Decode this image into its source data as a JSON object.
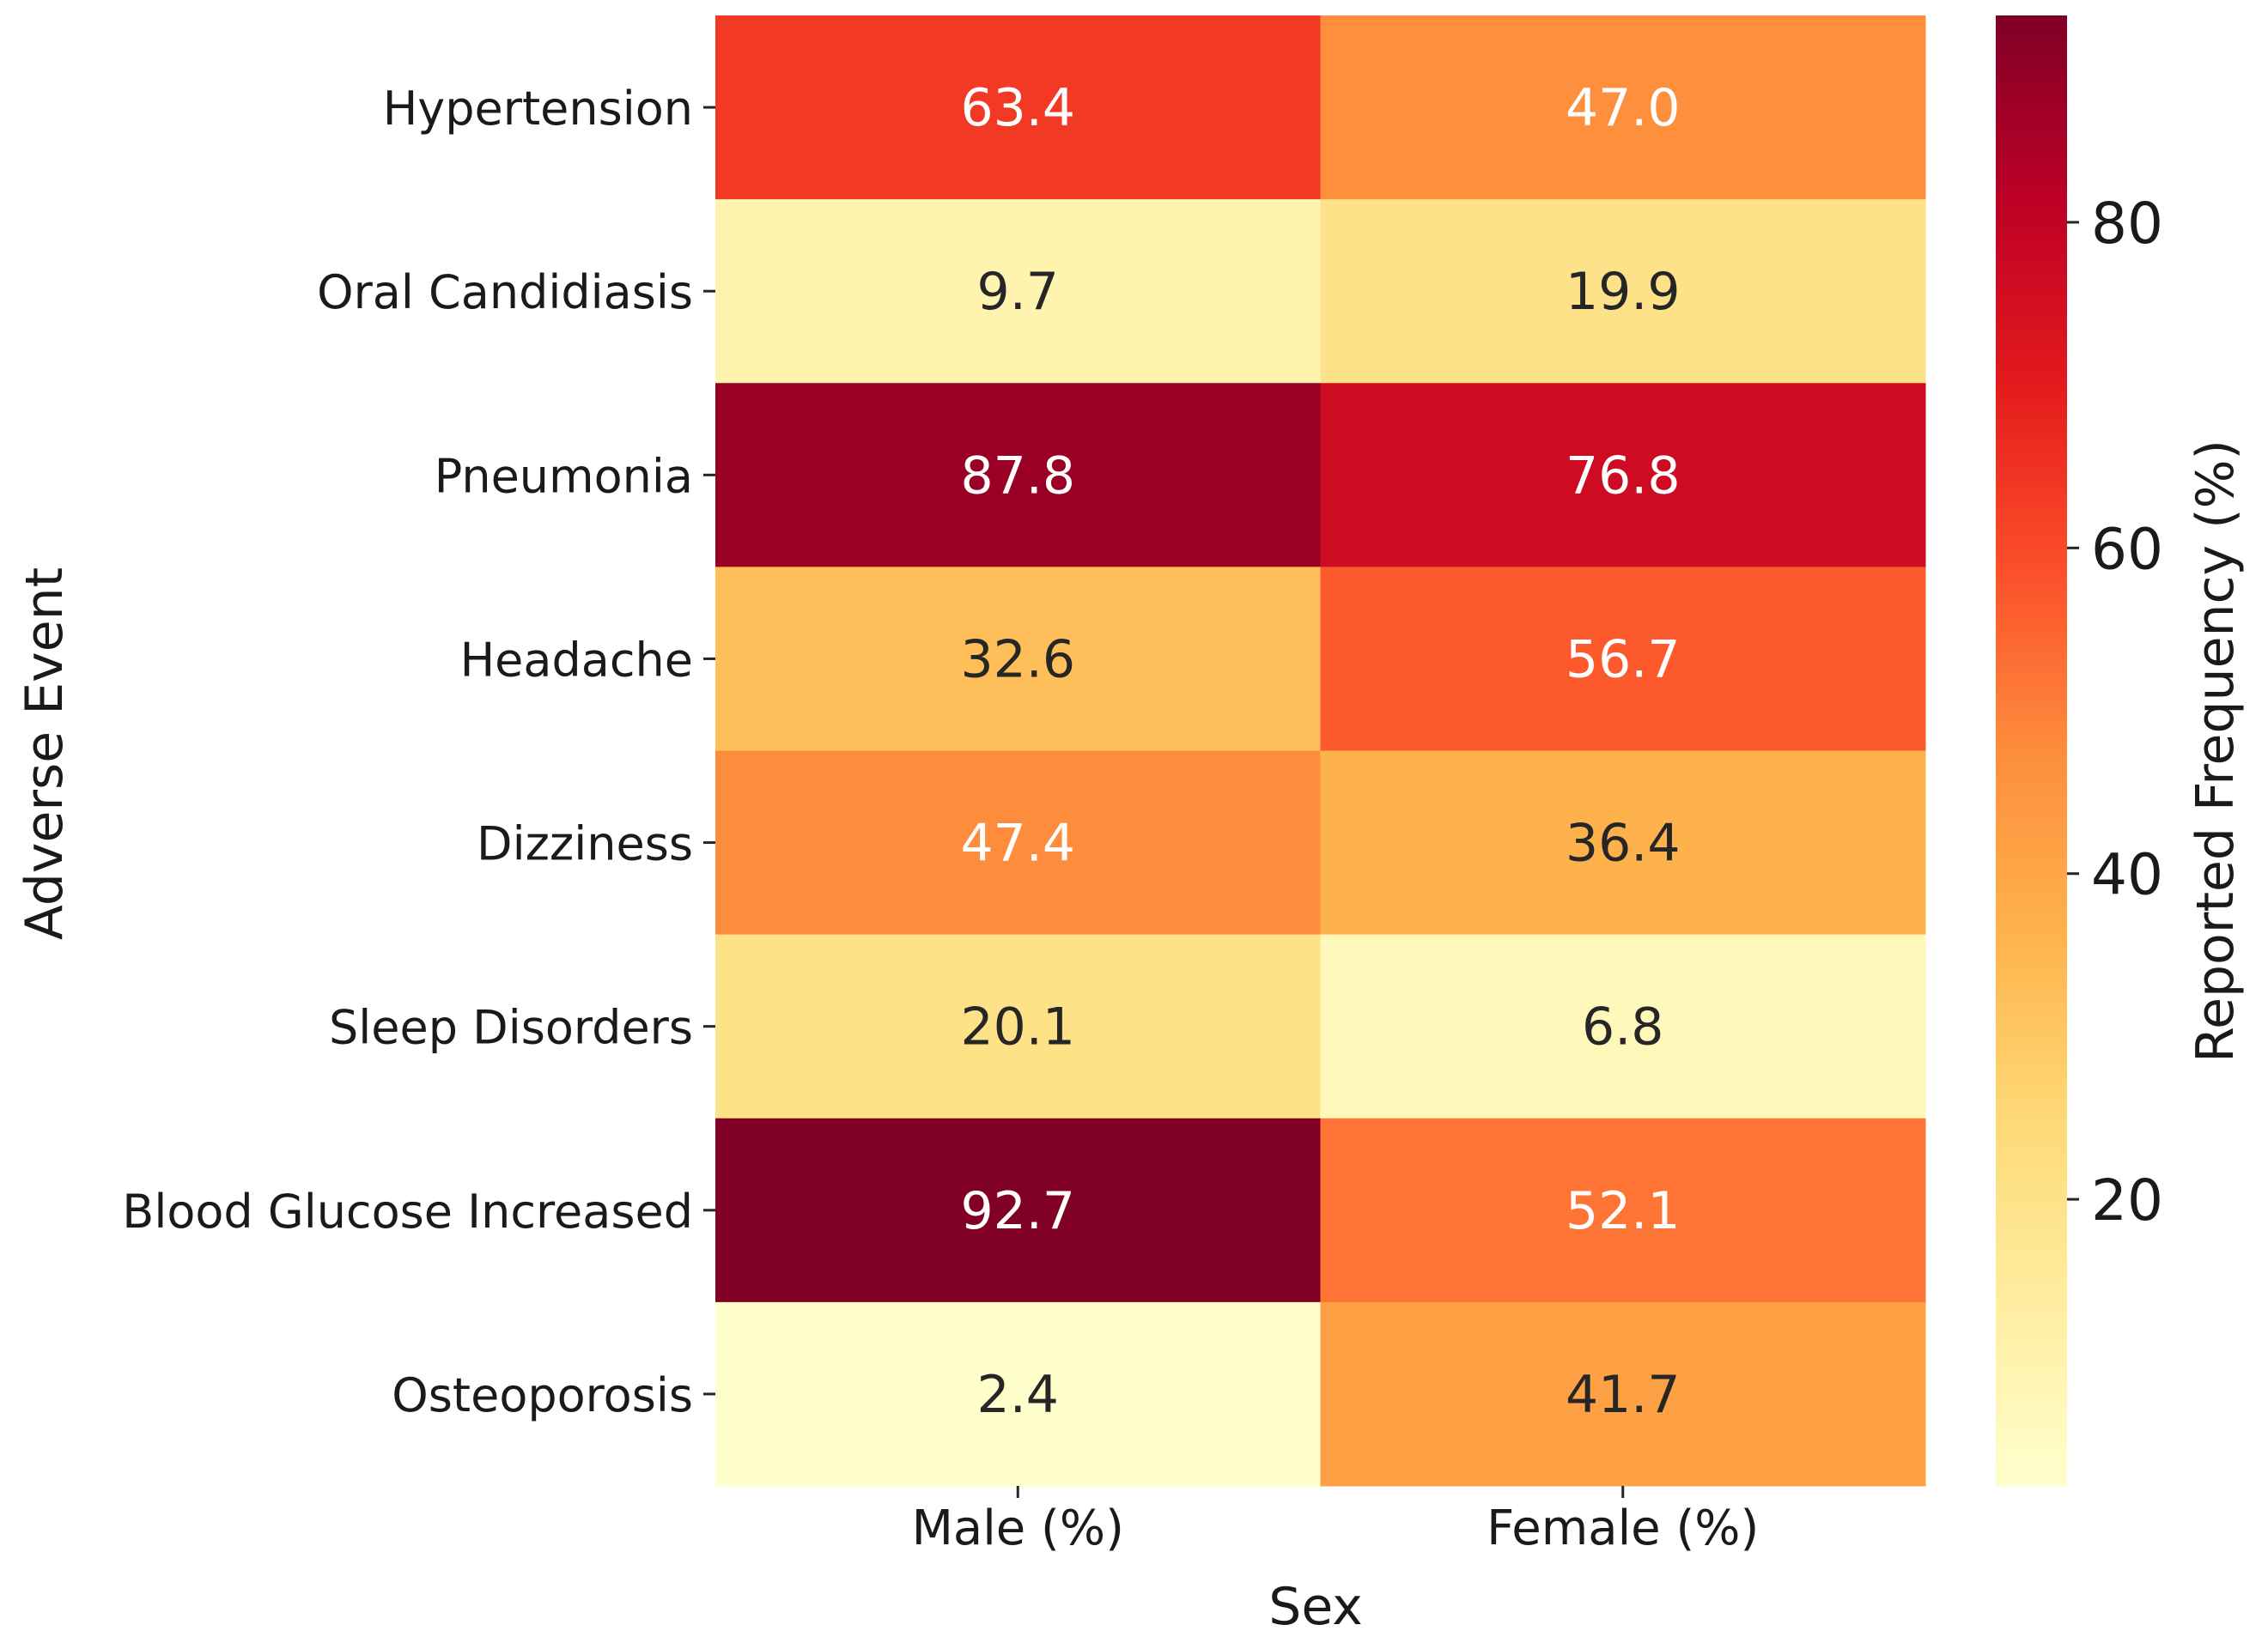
{
  "chart_data": {
    "type": "heatmap",
    "title": "",
    "xlabel": "Sex",
    "ylabel": "Adverse Event",
    "columns": [
      "Male (%)",
      "Female (%)"
    ],
    "rows": [
      "Hypertension",
      "Oral Candidiasis",
      "Pneumonia",
      "Headache",
      "Dizziness",
      "Sleep Disorders",
      "Blood Glucose Increased",
      "Osteoporosis"
    ],
    "values": [
      [
        63.4,
        47.0
      ],
      [
        9.7,
        19.9
      ],
      [
        87.8,
        76.8
      ],
      [
        32.6,
        56.7
      ],
      [
        47.4,
        36.4
      ],
      [
        20.1,
        6.8
      ],
      [
        92.7,
        52.1
      ],
      [
        2.4,
        41.7
      ]
    ],
    "value_labels": [
      [
        "63.4",
        "47.0"
      ],
      [
        "9.7",
        "19.9"
      ],
      [
        "87.8",
        "76.8"
      ],
      [
        "32.6",
        "56.7"
      ],
      [
        "47.4",
        "36.4"
      ],
      [
        "20.1",
        "6.8"
      ],
      [
        "92.7",
        "52.1"
      ],
      [
        "2.4",
        "41.7"
      ]
    ],
    "colormap": "YlOrRd",
    "color_range": [
      2.4,
      92.7
    ],
    "colorbar": {
      "label": "Reported Frequency (%)",
      "ticks": [
        20,
        40,
        60,
        80
      ],
      "tick_labels": [
        "20",
        "40",
        "60",
        "80"
      ]
    }
  }
}
